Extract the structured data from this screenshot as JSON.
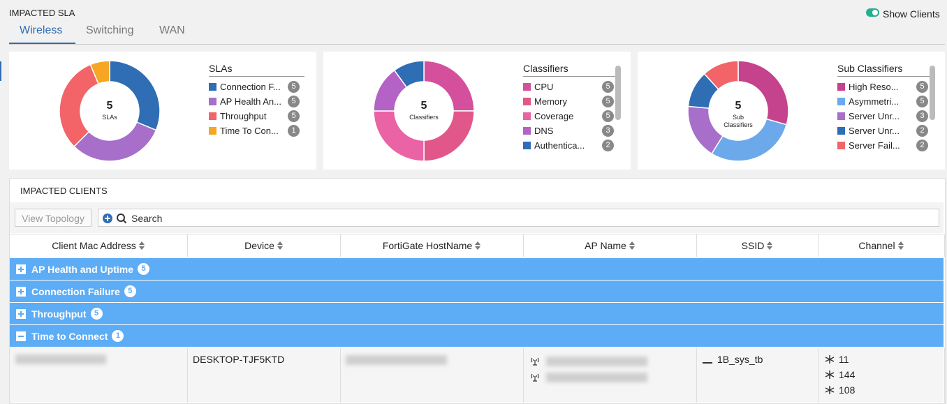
{
  "header": {
    "title": "IMPACTED SLA",
    "toggle": "Show Clients"
  },
  "tabs": [
    "Wireless",
    "Switching",
    "WAN"
  ],
  "panels": [
    {
      "title": "SLAs",
      "center_value": 5,
      "center_label": "SLAs",
      "items": [
        {
          "label": "Connection F...",
          "count": 5,
          "color": "#2f6db5"
        },
        {
          "label": "AP Health An...",
          "count": 5,
          "color": "#a76fc9"
        },
        {
          "label": "Throughput",
          "count": 5,
          "color": "#f26468"
        },
        {
          "label": "Time To Con...",
          "count": 1,
          "color": "#f6a623"
        }
      ]
    },
    {
      "title": "Classifiers",
      "center_value": 5,
      "center_label": "Classifiers",
      "items": [
        {
          "label": "CPU",
          "count": 5,
          "color": "#d4509c"
        },
        {
          "label": "Memory",
          "count": 5,
          "color": "#e2578a"
        },
        {
          "label": "Coverage",
          "count": 5,
          "color": "#ea63a4"
        },
        {
          "label": "DNS",
          "count": 3,
          "color": "#b462c6"
        },
        {
          "label": "Authentica...",
          "count": 2,
          "color": "#2f6db5"
        }
      ]
    },
    {
      "title": "Sub Classifiers",
      "center_value": 5,
      "center_label": "Sub Classifiers",
      "items": [
        {
          "label": "High Reso...",
          "count": 5,
          "color": "#c5438c"
        },
        {
          "label": "Asymmetri...",
          "count": 5,
          "color": "#6ca9ea"
        },
        {
          "label": "Server Unr...",
          "count": 3,
          "color": "#a76fc9"
        },
        {
          "label": "Server Unr...",
          "count": 2,
          "color": "#2f6db5"
        },
        {
          "label": "Server Fail...",
          "count": 2,
          "color": "#f26468"
        }
      ]
    }
  ],
  "clients": {
    "title": "IMPACTED CLIENTS",
    "view_topology": "View Topology",
    "search": "Search",
    "columns": [
      "Client Mac Address",
      "Device",
      "FortiGate HostName",
      "AP Name",
      "SSID",
      "Channel"
    ],
    "groups": [
      {
        "label": "AP Health and Uptime",
        "count": 5,
        "expanded": false
      },
      {
        "label": "Connection Failure",
        "count": 5,
        "expanded": false
      },
      {
        "label": "Throughput",
        "count": 5,
        "expanded": false
      },
      {
        "label": "Time to Connect",
        "count": 1,
        "expanded": true
      }
    ],
    "row": {
      "device": "DESKTOP-TJF5KTD",
      "ssid": "1B_sys_tb",
      "channels": [
        11,
        144,
        108
      ]
    }
  }
}
